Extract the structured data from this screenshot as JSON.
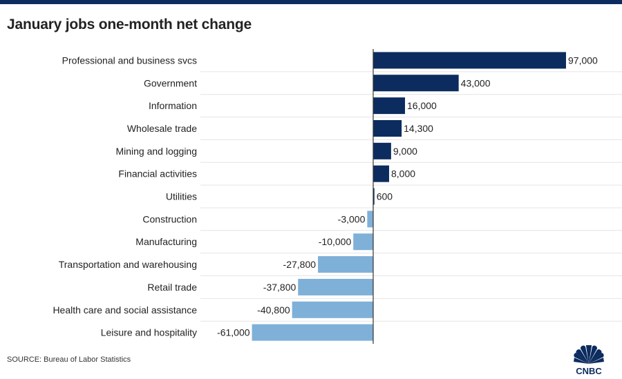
{
  "title": "January jobs one-month net change",
  "source": "SOURCE: Bureau of Labor Statistics",
  "logo_text": "CNBC",
  "colors": {
    "positive": "#0c2c5f",
    "negative": "#7fb0d8",
    "gridline": "#e4e4e4",
    "axis": "#333333",
    "text": "#222222"
  },
  "chart_data": {
    "type": "bar",
    "orientation": "horizontal",
    "title": "January jobs one-month net change",
    "categories": [
      "Professional and business svcs",
      "Government",
      "Information",
      "Wholesale trade",
      "Mining and logging",
      "Financial activities",
      "Utilities",
      "Construction",
      "Manufacturing",
      "Transportation and warehousing",
      "Retail trade",
      "Health care and social assistance",
      "Leisure and hospitality"
    ],
    "values": [
      97000,
      43000,
      16000,
      14300,
      9000,
      8000,
      600,
      -3000,
      -10000,
      -27800,
      -37800,
      -40800,
      -61000
    ],
    "value_labels": [
      "97,000",
      "43,000",
      "16,000",
      "14,300",
      "9,000",
      "8,000",
      "600",
      "-3,000",
      "-10,000",
      "-27,800",
      "-37,800",
      "-40,800",
      "-61,000"
    ],
    "xlim": [
      -61000,
      97000
    ],
    "grid": true,
    "legend": "none"
  }
}
